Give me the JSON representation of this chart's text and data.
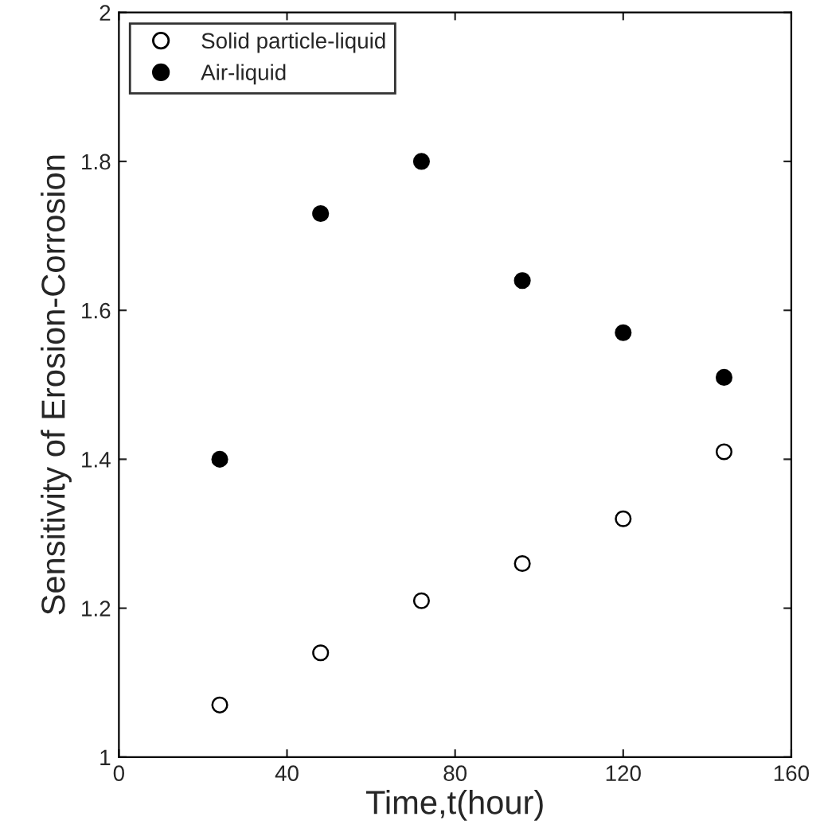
{
  "chart_data": {
    "type": "scatter",
    "xlabel": "Time,t(hour)",
    "ylabel": "Sensitivity of Erosion-Corrosion",
    "x": [
      24,
      48,
      72,
      96,
      120,
      144
    ],
    "series": [
      {
        "name": "Solid particle-liquid",
        "color": "#ffffff",
        "values": [
          1.07,
          1.14,
          1.21,
          1.26,
          1.32,
          1.41
        ]
      },
      {
        "name": "Air-liquid",
        "color": "#000000",
        "values": [
          1.4,
          1.73,
          1.8,
          1.64,
          1.57,
          1.51
        ]
      }
    ],
    "xlim": [
      0,
      160
    ],
    "xticks": [
      0,
      40,
      80,
      120,
      160
    ],
    "ylim": [
      1,
      2
    ],
    "yticks": [
      1,
      1.2,
      1.4,
      1.6,
      1.8,
      2
    ],
    "marker": "circle",
    "legend": "top left",
    "grid": false
  }
}
